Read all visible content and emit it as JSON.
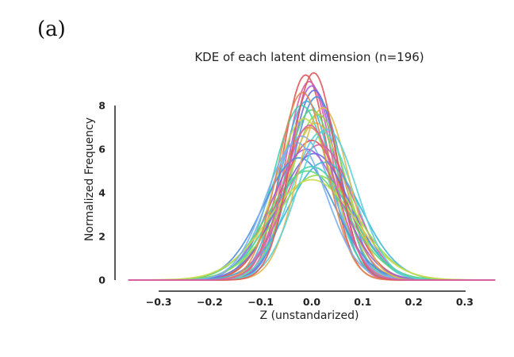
{
  "figure": {
    "panel_label": "(a)"
  },
  "chart_data": {
    "type": "line",
    "title": "KDE of each latent dimension (n=196)",
    "xlabel": "Z (unstandarized)",
    "ylabel": "Normalized Frequency",
    "xlim": [
      -0.36,
      0.36
    ],
    "ylim": [
      0,
      9.8
    ],
    "xticks": [
      -0.3,
      -0.2,
      -0.1,
      0.0,
      0.1,
      0.2,
      0.3
    ],
    "xtick_labels": [
      "−0.3",
      "−0.2",
      "−0.1",
      "0.0",
      "0.1",
      "0.2",
      "0.3"
    ],
    "yticks": [
      0,
      2,
      4,
      6,
      8
    ],
    "ytick_labels": [
      "0",
      "2",
      "4",
      "6",
      "8"
    ],
    "grid": false,
    "legend": "none",
    "palette": [
      "#e0565b",
      "#d95fa8",
      "#a55fd9",
      "#6a6fe0",
      "#4f8fe0",
      "#3fb6d9",
      "#3fd1b0",
      "#5fd67a",
      "#93d94f",
      "#c9d94a",
      "#e0b84f",
      "#e08a4f",
      "#5ad1d6",
      "#7ab0f0"
    ],
    "series": [
      {
        "mu": -0.012,
        "sigma": 0.045,
        "peak": 9.4
      },
      {
        "mu": -0.005,
        "sigma": 0.046,
        "peak": 9.1
      },
      {
        "mu": 0.0,
        "sigma": 0.047,
        "peak": 8.9
      },
      {
        "mu": 0.005,
        "sigma": 0.048,
        "peak": 8.7
      },
      {
        "mu": 0.01,
        "sigma": 0.05,
        "peak": 8.4
      },
      {
        "mu": -0.01,
        "sigma": 0.05,
        "peak": 8.2
      },
      {
        "mu": -0.02,
        "sigma": 0.055,
        "peak": 8.0
      },
      {
        "mu": 0.0,
        "sigma": 0.053,
        "peak": 7.8
      },
      {
        "mu": 0.012,
        "sigma": 0.055,
        "peak": 7.6
      },
      {
        "mu": -0.015,
        "sigma": 0.057,
        "peak": 7.4
      },
      {
        "mu": 0.008,
        "sigma": 0.058,
        "peak": 7.2
      },
      {
        "mu": -0.005,
        "sigma": 0.06,
        "peak": 7.0
      },
      {
        "mu": 0.02,
        "sigma": 0.06,
        "peak": 6.8
      },
      {
        "mu": -0.02,
        "sigma": 0.062,
        "peak": 6.6
      },
      {
        "mu": 0.0,
        "sigma": 0.064,
        "peak": 6.4
      },
      {
        "mu": 0.015,
        "sigma": 0.066,
        "peak": 6.2
      },
      {
        "mu": -0.01,
        "sigma": 0.068,
        "peak": 6.0
      },
      {
        "mu": 0.005,
        "sigma": 0.07,
        "peak": 5.8
      },
      {
        "mu": -0.025,
        "sigma": 0.07,
        "peak": 5.6
      },
      {
        "mu": 0.025,
        "sigma": 0.072,
        "peak": 5.4
      },
      {
        "mu": 0.0,
        "sigma": 0.075,
        "peak": 5.2
      },
      {
        "mu": -0.008,
        "sigma": 0.078,
        "peak": 5.0
      },
      {
        "mu": 0.01,
        "sigma": 0.08,
        "peak": 4.8
      },
      {
        "mu": 0.0,
        "sigma": 0.085,
        "peak": 4.6
      },
      {
        "mu": 0.022,
        "sigma": 0.05,
        "peak": 7.9
      },
      {
        "mu": -0.018,
        "sigma": 0.048,
        "peak": 8.6
      },
      {
        "mu": 0.03,
        "sigma": 0.058,
        "peak": 6.9
      },
      {
        "mu": -0.03,
        "sigma": 0.06,
        "peak": 6.3
      },
      {
        "mu": 0.004,
        "sigma": 0.044,
        "peak": 9.5
      },
      {
        "mu": -0.004,
        "sigma": 0.052,
        "peak": 7.1
      }
    ]
  }
}
